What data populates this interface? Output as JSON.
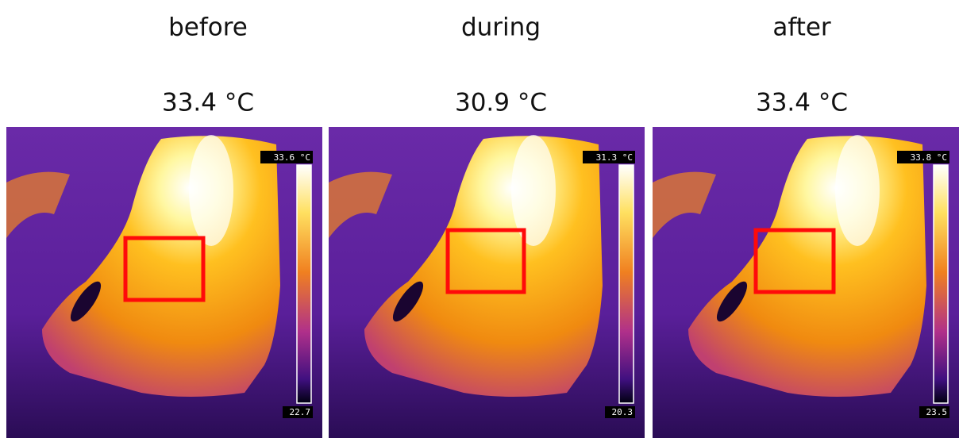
{
  "panels": [
    {
      "label": "before",
      "temperature": "33.4 °C",
      "scale_max": "33.6 °C",
      "scale_min": "22.7"
    },
    {
      "label": "during",
      "temperature": "30.9 °C",
      "scale_max": "31.3 °C",
      "scale_min": "20.3"
    },
    {
      "label": "after",
      "temperature": "33.4 °C",
      "scale_max": "33.8 °C",
      "scale_min": "23.5"
    }
  ]
}
